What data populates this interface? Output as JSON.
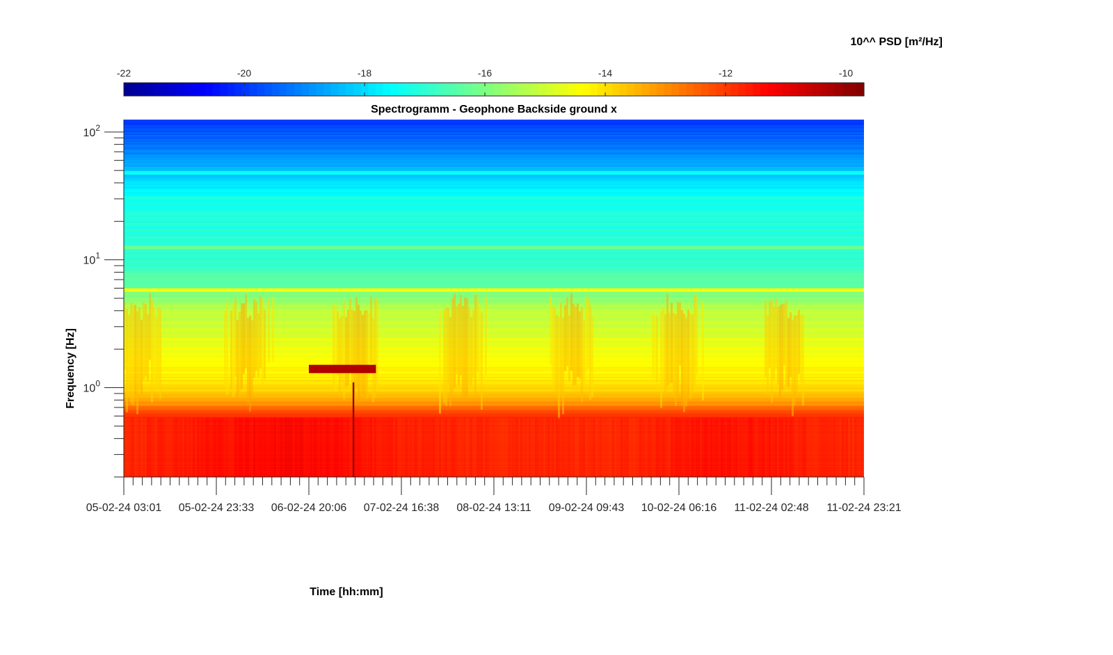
{
  "chart_data": {
    "type": "heatmap",
    "title": "Spectrogramm - Geophone Backside ground x",
    "xlabel": "Time [hh:mm]",
    "ylabel": "Frequency [Hz]",
    "y_scale": "log",
    "ylim": [
      0.2,
      125
    ],
    "y_ticks": [
      {
        "value": 1,
        "base": "10",
        "exp": "0"
      },
      {
        "value": 10,
        "base": "10",
        "exp": "1"
      },
      {
        "value": 100,
        "base": "10",
        "exp": "2"
      }
    ],
    "x_ticks": [
      "05-02-24 03:01",
      "05-02-24 23:33",
      "06-02-24 20:06",
      "07-02-24 16:38",
      "08-02-24 13:11",
      "09-02-24 09:43",
      "10-02-24 06:16",
      "11-02-24 02:48",
      "11-02-24 23:21"
    ],
    "x_minor_ticks_per_interval": 10,
    "colorbar": {
      "label": "10^^ PSD [m²/Hz]",
      "colormap": "jet",
      "range": [
        -22,
        -9.7
      ],
      "ticks": [
        "-22",
        "-20",
        "-18",
        "-16",
        "-14",
        "-12",
        "-10"
      ],
      "tick_values": [
        -22,
        -20,
        -18,
        -16,
        -14,
        -12,
        -10
      ]
    },
    "psd_profile_log10": [
      {
        "freq": 0.2,
        "level": -11.5
      },
      {
        "freq": 0.6,
        "level": -11.8
      },
      {
        "freq": 0.8,
        "level": -13.4
      },
      {
        "freq": 1.0,
        "level": -14.0
      },
      {
        "freq": 2.0,
        "level": -14.6
      },
      {
        "freq": 4.0,
        "level": -15.2
      },
      {
        "freq": 6.0,
        "level": -16.3
      },
      {
        "freq": 10.0,
        "level": -17.0
      },
      {
        "freq": 30.0,
        "level": -17.3
      },
      {
        "freq": 60.0,
        "level": -18.8
      },
      {
        "freq": 125.0,
        "level": -20.0
      }
    ],
    "persistent_lines": [
      {
        "freq": 5.8,
        "level": -14.5
      },
      {
        "freq": 12.5,
        "level": -16.2
      },
      {
        "freq": 48.0,
        "level": -17.5
      }
    ],
    "notable_features": [
      {
        "type": "band",
        "freq": 1.4,
        "from": "06-02-24 20:06",
        "to": "07-02-24 11:00",
        "level": -10.3
      },
      {
        "type": "transient",
        "time": "07-02-24 06:00",
        "freq_range": [
          0.2,
          1.1
        ],
        "level": -10.0
      }
    ]
  }
}
